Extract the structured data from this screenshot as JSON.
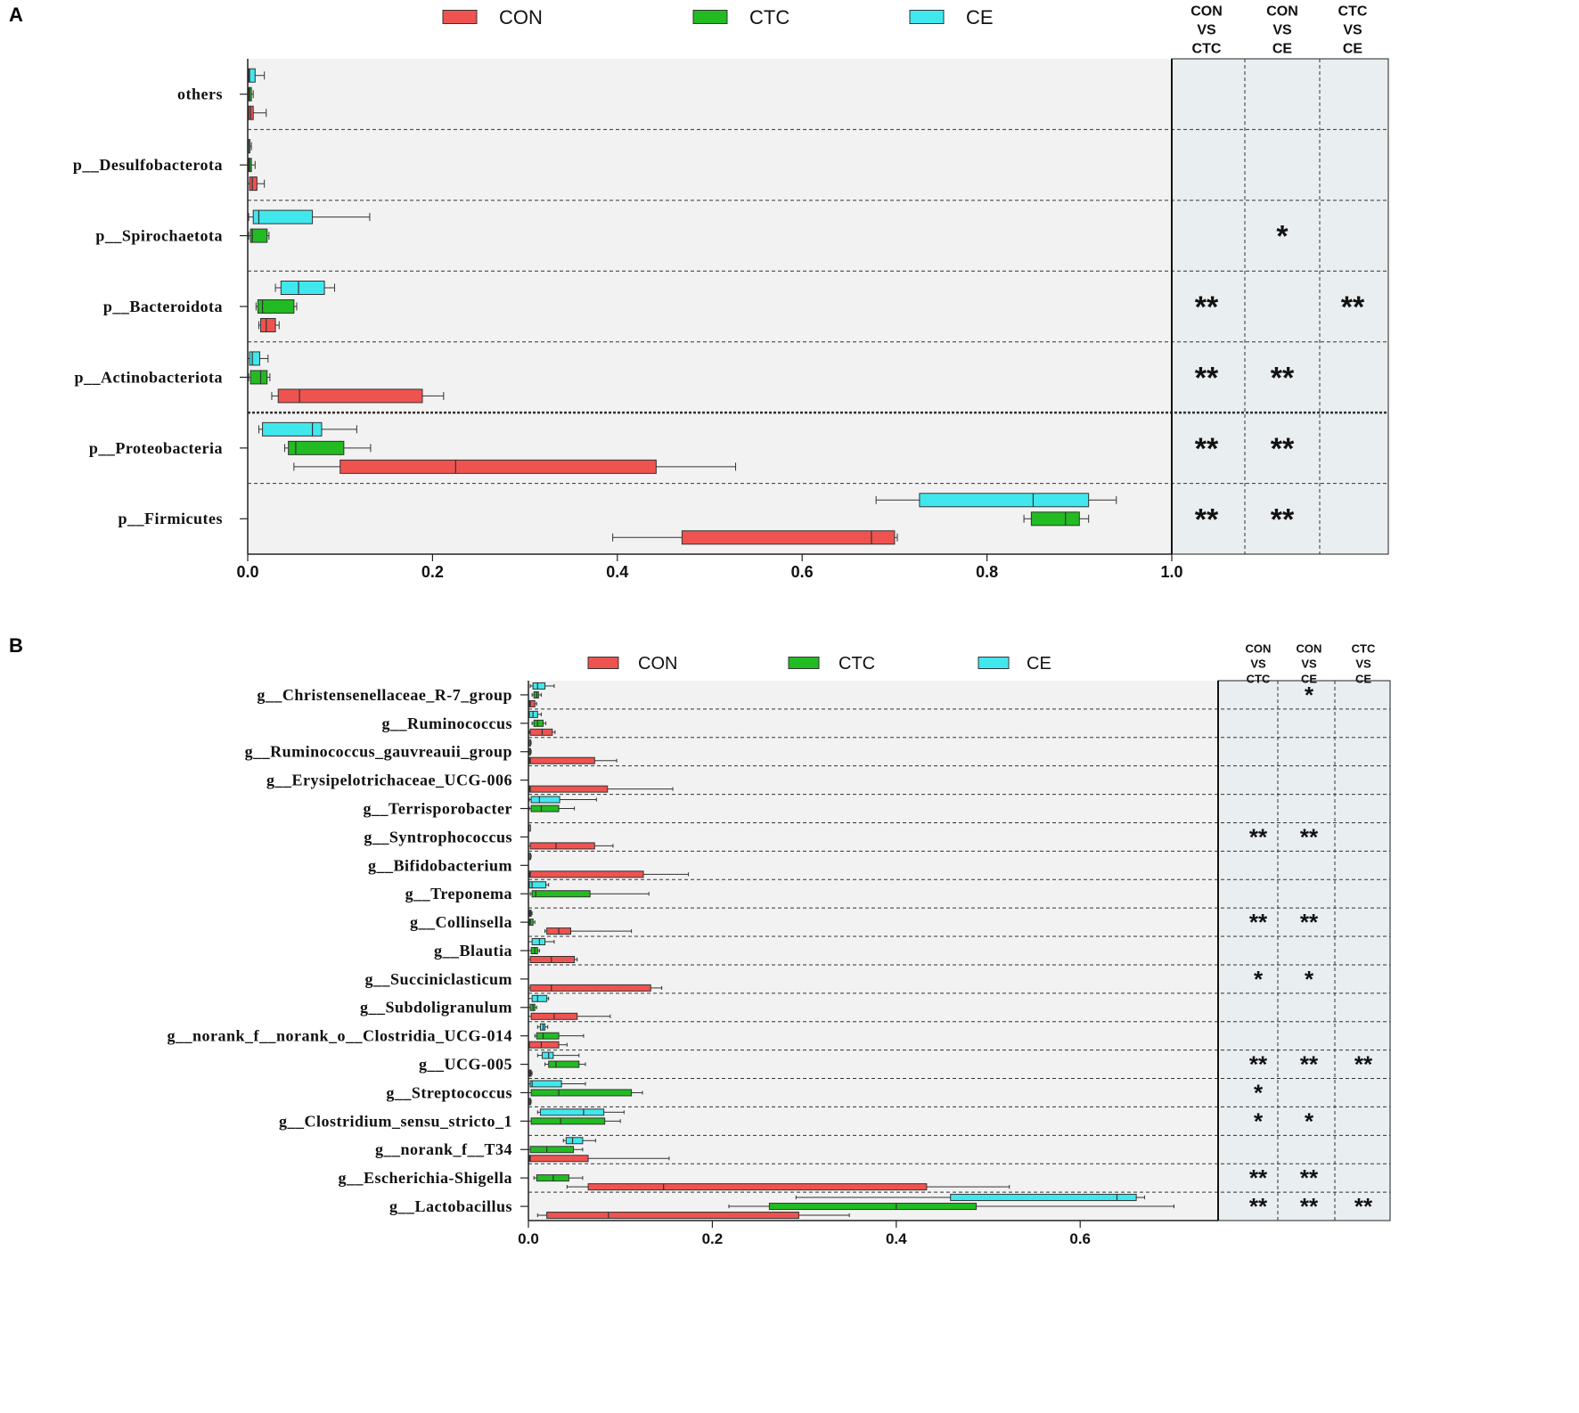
{
  "colors": {
    "CON": "#ef5350",
    "CTC": "#22bb22",
    "CE": "#40e8ee",
    "plot_bg": "#f2f2f2",
    "sig_bg": "#e9eef0"
  },
  "chart_data": [
    {
      "type": "box",
      "panel_label": "A",
      "legend": [
        "CON",
        "CTC",
        "CE"
      ],
      "xlim": [
        0,
        1.0
      ],
      "xticks": [
        "0.0",
        "0.2",
        "0.4",
        "0.6",
        "0.8",
        "1.0"
      ],
      "tick_values": [
        0,
        0.2,
        0.4,
        0.6,
        0.8,
        1.0
      ],
      "comparisons": [
        [
          "CON",
          "VS",
          "CTC"
        ],
        [
          "CON",
          "VS",
          "CE"
        ],
        [
          "CTC",
          "VS",
          "CE"
        ]
      ],
      "categories": [
        {
          "label": "others",
          "sig": [
            "",
            "",
            ""
          ],
          "boxes": {
            "CE": [
              0.0,
              0.001,
              0.002,
              0.008,
              0.018
            ],
            "CTC": [
              0.0,
              0.001,
              0.002,
              0.004,
              0.006
            ],
            "CON": [
              0.0,
              0.001,
              0.003,
              0.006,
              0.02
            ]
          }
        },
        {
          "label": "p__Desulfobacterota",
          "sig": [
            "",
            "",
            ""
          ],
          "boxes": {
            "CE": [
              0.0,
              0.0005,
              0.001,
              0.002,
              0.004
            ],
            "CTC": [
              0.0,
              0.001,
              0.002,
              0.004,
              0.008
            ],
            "CON": [
              0.0,
              0.002,
              0.005,
              0.01,
              0.018
            ]
          }
        },
        {
          "label": "p__Spirochaetota",
          "sig": [
            "",
            "*",
            ""
          ],
          "boxes": {
            "CE": [
              0.001,
              0.006,
              0.012,
              0.07,
              0.132
            ],
            "CTC": [
              0.001,
              0.003,
              0.005,
              0.021,
              0.023
            ],
            "CON": null
          }
        },
        {
          "label": "p__Bacteroidota",
          "sig": [
            "**",
            "",
            "**"
          ],
          "boxes": {
            "CE": [
              0.03,
              0.036,
              0.055,
              0.083,
              0.094
            ],
            "CTC": [
              0.009,
              0.011,
              0.016,
              0.05,
              0.053
            ],
            "CON": [
              0.012,
              0.014,
              0.02,
              0.03,
              0.034
            ]
          }
        },
        {
          "label": "p__Actinobacteriota",
          "sig": [
            "**",
            "**",
            ""
          ],
          "boxes": {
            "CE": [
              0.0,
              0.002,
              0.005,
              0.013,
              0.022
            ],
            "CTC": [
              0.001,
              0.003,
              0.014,
              0.021,
              0.024
            ],
            "CON": [
              0.026,
              0.033,
              0.056,
              0.189,
              0.212
            ]
          }
        },
        {
          "label": "p__Proteobacteria",
          "sig": [
            "**",
            "**",
            ""
          ],
          "boxes": {
            "CE": [
              0.012,
              0.016,
              0.07,
              0.08,
              0.118
            ],
            "CTC": [
              0.04,
              0.044,
              0.052,
              0.104,
              0.133
            ],
            "CON": [
              0.05,
              0.1,
              0.225,
              0.442,
              0.528
            ]
          }
        },
        {
          "label": "p__Firmicutes",
          "sig": [
            "**",
            "**",
            ""
          ],
          "boxes": {
            "CE": [
              0.68,
              0.727,
              0.85,
              0.91,
              0.94
            ],
            "CTC": [
              0.84,
              0.848,
              0.885,
              0.9,
              0.91
            ],
            "CON": [
              0.395,
              0.47,
              0.675,
              0.7,
              0.703
            ]
          }
        }
      ]
    },
    {
      "type": "box",
      "panel_label": "B",
      "legend": [
        "CON",
        "CTC",
        "CE"
      ],
      "xlim": [
        0,
        0.75
      ],
      "xticks": [
        "0.0",
        "0.2",
        "0.4",
        "0.6"
      ],
      "tick_values": [
        0,
        0.2,
        0.4,
        0.6
      ],
      "comparisons": [
        [
          "CON",
          "VS",
          "CTC"
        ],
        [
          "CON",
          "VS",
          "CE"
        ],
        [
          "CTC",
          "VS",
          "CE"
        ]
      ],
      "categories": [
        {
          "label": "g__Christensenellaceae_R-7_group",
          "sig": [
            "",
            "*",
            ""
          ],
          "boxes": {
            "CE": [
              0.002,
              0.005,
              0.01,
              0.018,
              0.028
            ],
            "CTC": [
              0.004,
              0.006,
              0.009,
              0.011,
              0.014
            ],
            "CON": [
              0.0,
              0.001,
              0.002,
              0.007,
              0.009
            ]
          }
        },
        {
          "label": "g__Ruminococcus",
          "sig": [
            "",
            "",
            ""
          ],
          "boxes": {
            "CE": [
              0.0,
              0.001,
              0.005,
              0.01,
              0.014
            ],
            "CTC": [
              0.004,
              0.006,
              0.01,
              0.016,
              0.019
            ],
            "CON": [
              0.001,
              0.002,
              0.015,
              0.026,
              0.029
            ]
          }
        },
        {
          "label": "g__Ruminococcus_gauvreauii_group",
          "sig": [
            "",
            "",
            ""
          ],
          "boxes": {
            "CE": [
              0.0,
              0.0005,
              0.001,
              0.002,
              0.003
            ],
            "CTC": [
              0.0,
              0.0005,
              0.001,
              0.002,
              0.003
            ],
            "CON": [
              0.0,
              0.001,
              0.002,
              0.072,
              0.096
            ]
          }
        },
        {
          "label": "g__Erysipelotrichaceae_UCG-006",
          "sig": [
            "",
            "",
            ""
          ],
          "boxes": {
            "CE": null,
            "CTC": null,
            "CON": [
              0.0,
              0.001,
              0.002,
              0.086,
              0.157
            ]
          }
        },
        {
          "label": "g__Terrisporobacter",
          "sig": [
            "",
            "",
            ""
          ],
          "boxes": {
            "CE": [
              0.001,
              0.003,
              0.012,
              0.034,
              0.074
            ],
            "CTC": [
              0.001,
              0.003,
              0.014,
              0.033,
              0.05
            ],
            "CON": null
          }
        },
        {
          "label": "g__Syntrophococcus",
          "sig": [
            "**",
            "**",
            ""
          ],
          "boxes": {
            "CE": [
              0.0,
              0.0003,
              0.0005,
              0.001,
              0.002
            ],
            "CTC": null,
            "CON": [
              0.0,
              0.002,
              0.03,
              0.072,
              0.092
            ]
          }
        },
        {
          "label": "g__Bifidobacterium",
          "sig": [
            "",
            "",
            ""
          ],
          "boxes": {
            "CE": [
              0.0,
              0.0005,
              0.001,
              0.002,
              0.003
            ],
            "CTC": null,
            "CON": [
              0.0,
              0.001,
              0.002,
              0.125,
              0.174
            ]
          }
        },
        {
          "label": "g__Treponema",
          "sig": [
            "",
            "",
            ""
          ],
          "boxes": {
            "CE": [
              0.0,
              0.001,
              0.004,
              0.019,
              0.022
            ],
            "CTC": [
              0.002,
              0.004,
              0.008,
              0.067,
              0.131
            ],
            "CON": null
          }
        },
        {
          "label": "g__Collinsella",
          "sig": [
            "**",
            "**",
            ""
          ],
          "boxes": {
            "CE": [
              0.0,
              0.001,
              0.002,
              0.003,
              0.004
            ],
            "CTC": [
              0.0,
              0.001,
              0.002,
              0.005,
              0.007
            ],
            "CON": [
              0.018,
              0.02,
              0.033,
              0.046,
              0.112
            ]
          }
        },
        {
          "label": "g__Blautia",
          "sig": [
            "",
            "",
            ""
          ],
          "boxes": {
            "CE": [
              0.0,
              0.004,
              0.012,
              0.018,
              0.028
            ],
            "CTC": [
              0.0,
              0.003,
              0.007,
              0.01,
              0.012
            ],
            "CON": [
              0.0,
              0.002,
              0.025,
              0.05,
              0.053
            ]
          }
        },
        {
          "label": "g__Succiniclasticum",
          "sig": [
            "*",
            "*",
            ""
          ],
          "boxes": {
            "CE": null,
            "CTC": null,
            "CON": [
              0.0,
              0.002,
              0.025,
              0.133,
              0.145
            ]
          }
        },
        {
          "label": "g__Subdoligranulum",
          "sig": [
            "",
            "",
            ""
          ],
          "boxes": {
            "CE": [
              0.0,
              0.004,
              0.01,
              0.02,
              0.022
            ],
            "CTC": [
              0.0,
              0.002,
              0.005,
              0.007,
              0.009
            ],
            "CON": [
              0.0,
              0.003,
              0.028,
              0.053,
              0.089
            ]
          }
        },
        {
          "label": "g__norank_f__norank_o__Clostridia_UCG-014",
          "sig": [
            "",
            "",
            ""
          ],
          "boxes": {
            "CE": [
              0.01,
              0.013,
              0.016,
              0.018,
              0.021
            ],
            "CTC": [
              0.007,
              0.009,
              0.016,
              0.033,
              0.06
            ],
            "CON": [
              0.0,
              0.001,
              0.014,
              0.033,
              0.042
            ]
          }
        },
        {
          "label": "g__UCG-005",
          "sig": [
            "**",
            "**",
            "**"
          ],
          "boxes": {
            "CE": [
              0.01,
              0.015,
              0.022,
              0.027,
              0.055
            ],
            "CTC": [
              0.018,
              0.022,
              0.03,
              0.055,
              0.062
            ],
            "CON": [
              0.0,
              0.001,
              0.002,
              0.003,
              0.004
            ]
          }
        },
        {
          "label": "g__Streptococcus",
          "sig": [
            "*",
            "",
            ""
          ],
          "boxes": {
            "CE": [
              0.0,
              0.002,
              0.004,
              0.036,
              0.062
            ],
            "CTC": [
              0.0,
              0.003,
              0.033,
              0.112,
              0.124
            ],
            "CON": [
              0.0,
              0.0005,
              0.001,
              0.002,
              0.003
            ]
          }
        },
        {
          "label": "g__Clostridium_sensu_stricto_1",
          "sig": [
            "*",
            "*",
            ""
          ],
          "boxes": {
            "CE": [
              0.01,
              0.013,
              0.06,
              0.082,
              0.104
            ],
            "CTC": [
              0.0,
              0.003,
              0.035,
              0.083,
              0.1
            ],
            "CON": null
          }
        },
        {
          "label": "g__norank_f__T34",
          "sig": [
            "",
            "",
            ""
          ],
          "boxes": {
            "CE": [
              0.038,
              0.041,
              0.048,
              0.059,
              0.073
            ],
            "CTC": [
              0.0,
              0.002,
              0.02,
              0.049,
              0.059
            ],
            "CON": [
              0.0,
              0.001,
              0.002,
              0.065,
              0.153
            ]
          }
        },
        {
          "label": "g__Escherichia-Shigella",
          "sig": [
            "**",
            "**",
            ""
          ],
          "boxes": {
            "CE": null,
            "CTC": [
              0.006,
              0.009,
              0.027,
              0.044,
              0.059
            ],
            "CON": [
              0.042,
              0.065,
              0.147,
              0.433,
              0.523
            ]
          }
        },
        {
          "label": "g__Lactobacillus",
          "sig": [
            "**",
            "**",
            "**"
          ],
          "boxes": {
            "CE": [
              0.291,
              0.459,
              0.64,
              0.661,
              0.67
            ],
            "CTC": [
              0.218,
              0.262,
              0.4,
              0.487,
              0.702
            ],
            "CON": [
              0.01,
              0.02,
              0.087,
              0.294,
              0.349
            ]
          }
        }
      ]
    }
  ]
}
